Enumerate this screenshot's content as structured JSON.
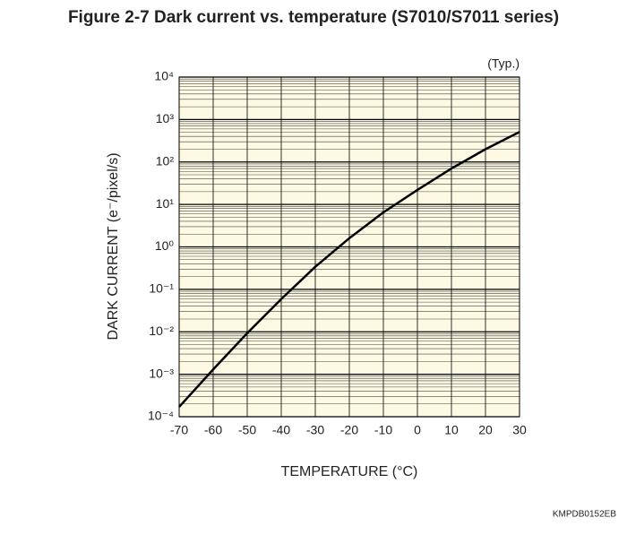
{
  "chart_data": {
    "type": "line",
    "title": "Figure 2-7   Dark current vs. temperature (S7010/S7011 series)",
    "annotation": "(Typ.)",
    "x_label": "TEMPERATURE (°C)",
    "y_label": "DARK CURRENT (e⁻/pixel/s)",
    "footer": "KMPDB0152EB",
    "x": [
      -70,
      -60,
      -50,
      -40,
      -30,
      -20,
      -10,
      0,
      10,
      20,
      30
    ],
    "series": [
      {
        "color": "#000000",
        "values": [
          0.00017,
          0.0013,
          0.0093,
          0.059,
          0.34,
          1.6,
          6.5,
          22,
          70,
          200,
          510
        ]
      }
    ],
    "xlim": [
      -70,
      30
    ],
    "xticks": [
      -70,
      -60,
      -50,
      -40,
      -30,
      -20,
      -10,
      0,
      10,
      20,
      30
    ],
    "ylim": [
      0.0001,
      10000
    ],
    "log_y": true,
    "yticks": [
      {
        "value": 0.0001,
        "label": "10⁻⁴"
      },
      {
        "value": 0.001,
        "label": "10⁻³"
      },
      {
        "value": 0.01,
        "label": "10⁻²"
      },
      {
        "value": 0.1,
        "label": "10⁻¹"
      },
      {
        "value": 1,
        "label": "10⁰"
      },
      {
        "value": 10,
        "label": "10¹"
      },
      {
        "value": 100,
        "label": "10²"
      },
      {
        "value": 1000,
        "label": "10³"
      },
      {
        "value": 10000,
        "label": "10⁴"
      }
    ],
    "grid": true,
    "minor_grid": true,
    "background": "#fdf9e3"
  }
}
